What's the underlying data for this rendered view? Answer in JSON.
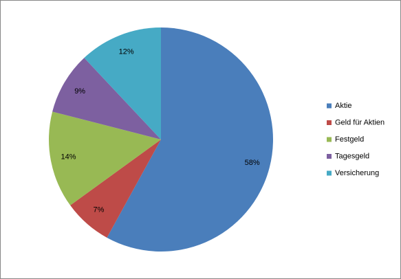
{
  "chart_data": {
    "type": "pie",
    "categories": [
      "Aktie",
      "Geld für Aktien",
      "Festgeld",
      "Tagesgeld",
      "Versicherung"
    ],
    "values": [
      58,
      7,
      14,
      9,
      12
    ],
    "value_labels": [
      "58%",
      "7%",
      "14%",
      "9%",
      "12%"
    ],
    "colors": [
      "#4a7ebb",
      "#be4b48",
      "#98b954",
      "#7d60a0",
      "#46aac5"
    ],
    "legend": "right"
  }
}
